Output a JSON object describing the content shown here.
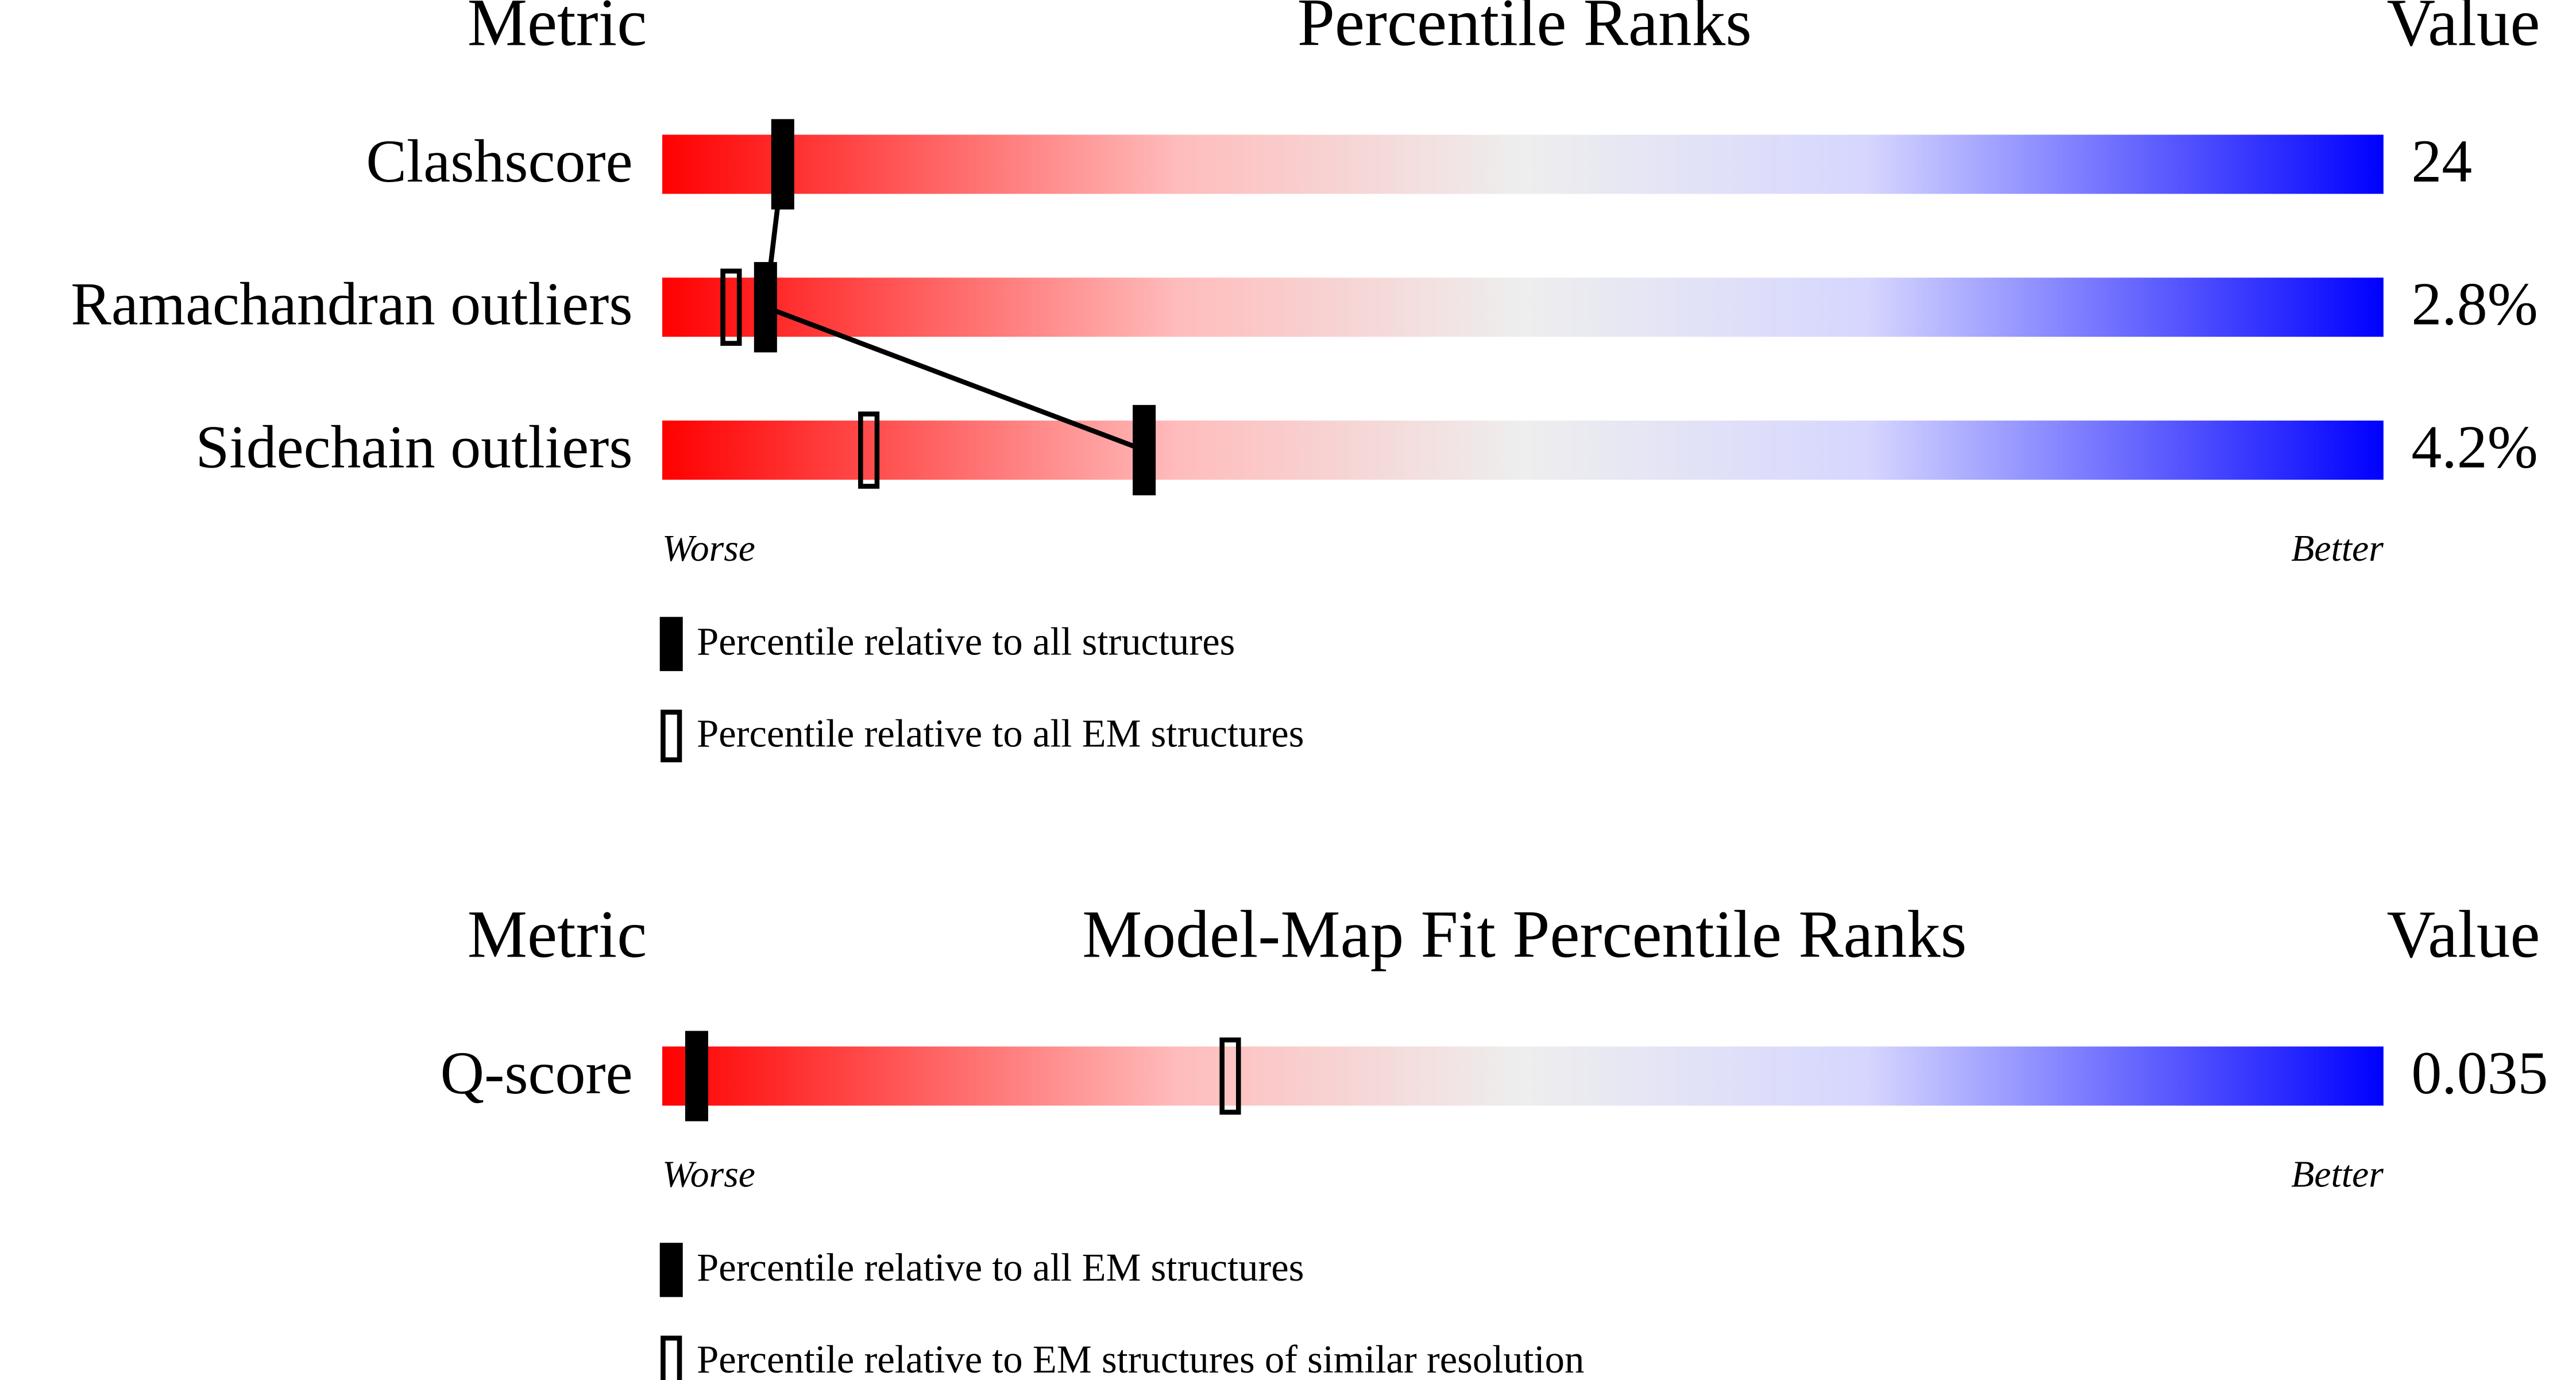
{
  "chart_data": [
    {
      "type": "percentile",
      "metric_header": "Metric",
      "title": "Percentile Ranks",
      "value_header": "Value",
      "categories": [
        "Clashscore",
        "Ramachandran outliers",
        "Sidechain outliers"
      ],
      "value_labels": [
        "24",
        "2.8%",
        "4.2%"
      ],
      "xlim": [
        0,
        100
      ],
      "xlabel_low": "Worse",
      "xlabel_high": "Better",
      "series": [
        {
          "name": "Percentile relative to all structures",
          "color": "#000000",
          "filled": true,
          "values": [
            7,
            6,
            28
          ]
        },
        {
          "name": "Percentile relative to all EM structures",
          "color": "#000000",
          "filled": false,
          "values": [
            null,
            4,
            12
          ]
        }
      ]
    },
    {
      "type": "percentile",
      "metric_header": "Metric",
      "title": "Model-Map Fit Percentile Ranks",
      "value_header": "Value",
      "categories": [
        "Q-score"
      ],
      "value_labels": [
        "0.035"
      ],
      "xlim": [
        0,
        100
      ],
      "xlabel_low": "Worse",
      "xlabel_high": "Better",
      "series": [
        {
          "name": "Percentile relative to all EM structures",
          "color": "#000000",
          "filled": true,
          "values": [
            2
          ]
        },
        {
          "name": "Percentile relative to EM structures of similar resolution",
          "color": "#000000",
          "filled": false,
          "values": [
            33
          ]
        }
      ]
    }
  ]
}
